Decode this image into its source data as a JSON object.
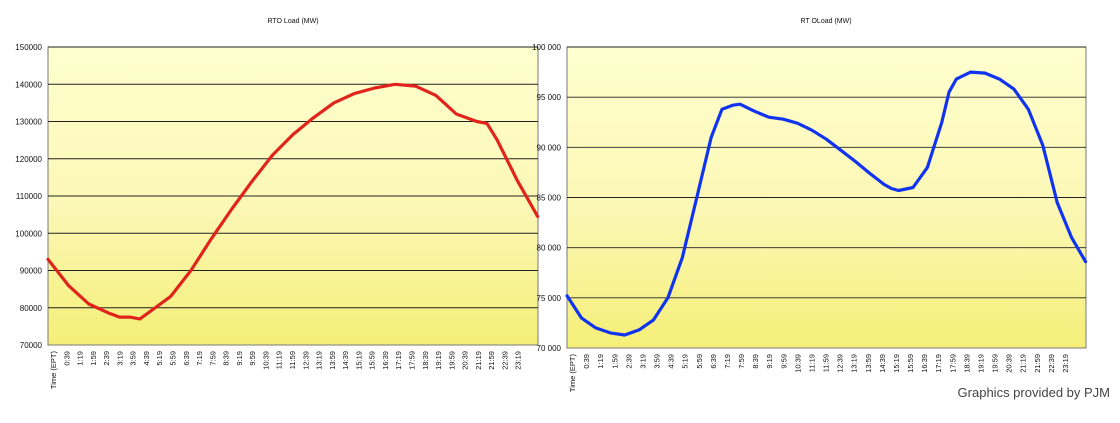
{
  "credit": "Graphics provided by PJM",
  "chart_data": [
    {
      "type": "line",
      "title": "RTO Load (MW)",
      "xlabel": "",
      "ylabel": "",
      "ylim": [
        70000,
        150000
      ],
      "yticks": [
        70000,
        80000,
        90000,
        100000,
        110000,
        120000,
        130000,
        140000,
        150000
      ],
      "grid": true,
      "legend": "none",
      "colors": {
        "line": "#e0241b",
        "background_top": "#ffffcc",
        "background_bottom": "#f6f27e",
        "grid": "#000000"
      },
      "x_tick_labels": [
        "Time (EPT)",
        "0:39",
        "1:19",
        "1:59",
        "2:39",
        "3:19",
        "3:59",
        "4:39",
        "5:19",
        "5:59",
        "6:39",
        "7:19",
        "7:59",
        "8:39",
        "9:19",
        "9:59",
        "10:39",
        "11:19",
        "11:59",
        "12:39",
        "13:19",
        "13:59",
        "14:39",
        "15:19",
        "15:59",
        "16:39",
        "17:19",
        "17:59",
        "18:39",
        "19:19",
        "19:59",
        "20:39",
        "21:19",
        "21:59",
        "22:39",
        "23:19"
      ],
      "series": [
        {
          "x": [
            "0:00",
            "1:00",
            "2:00",
            "3:00",
            "3:30",
            "4:00",
            "4:30",
            "5:00",
            "6:00",
            "7:00",
            "8:00",
            "9:00",
            "10:00",
            "11:00",
            "12:00",
            "13:00",
            "14:00",
            "15:00",
            "16:00",
            "17:00",
            "18:00",
            "19:00",
            "19:30",
            "20:00",
            "21:00",
            "21:30",
            "22:00",
            "23:00",
            "23:59"
          ],
          "values": [
            93000,
            86000,
            81000,
            78500,
            77500,
            77500,
            77000,
            79000,
            83000,
            90000,
            98500,
            106500,
            114000,
            121000,
            126500,
            131000,
            135000,
            137500,
            139000,
            140000,
            139500,
            137000,
            134500,
            132000,
            130000,
            129500,
            125000,
            114000,
            104500
          ]
        }
      ]
    },
    {
      "type": "line",
      "title": "RT OLoad (MW)",
      "xlabel": "",
      "ylabel": "",
      "ylim": [
        70000,
        100000
      ],
      "yticks": [
        70000,
        75000,
        80000,
        85000,
        90000,
        95000,
        100000
      ],
      "grid": true,
      "legend": "none",
      "colors": {
        "line": "#1033f0",
        "background_top": "#ffffcc",
        "background_bottom": "#f6f27e",
        "grid": "#000000"
      },
      "x_tick_labels": [
        "Time (EPT)",
        "0:39",
        "1:19",
        "1:59",
        "2:39",
        "3:19",
        "3:59",
        "4:39",
        "5:19",
        "5:59",
        "6:39",
        "7:19",
        "7:59",
        "8:39",
        "9:19",
        "9:59",
        "10:39",
        "11:19",
        "11:59",
        "12:39",
        "13:19",
        "13:59",
        "14:39",
        "15:19",
        "15:59",
        "16:39",
        "17:19",
        "17:59",
        "18:39",
        "19:19",
        "19:59",
        "20:39",
        "21:19",
        "21:59",
        "22:39",
        "23:19"
      ],
      "series": [
        {
          "x": [
            "0:00",
            "0:40",
            "1:20",
            "2:00",
            "2:40",
            "3:20",
            "4:00",
            "4:40",
            "5:20",
            "6:00",
            "6:40",
            "7:10",
            "7:40",
            "8:00",
            "8:40",
            "9:20",
            "10:00",
            "10:40",
            "11:20",
            "12:00",
            "12:40",
            "13:20",
            "14:00",
            "14:40",
            "15:00",
            "15:20",
            "16:00",
            "16:40",
            "17:20",
            "17:40",
            "18:00",
            "18:40",
            "19:20",
            "19:40",
            "20:00",
            "20:40",
            "21:20",
            "22:00",
            "22:40",
            "23:20",
            "23:59"
          ],
          "values": [
            75200,
            73000,
            72000,
            71500,
            71300,
            71800,
            72800,
            75000,
            79000,
            85000,
            91000,
            93800,
            94200,
            94300,
            93600,
            93000,
            92800,
            92400,
            91700,
            90800,
            89700,
            88600,
            87400,
            86300,
            85900,
            85700,
            86000,
            88000,
            92500,
            95500,
            96800,
            97500,
            97400,
            97100,
            96800,
            95800,
            93800,
            90200,
            84500,
            81000,
            78600
          ]
        }
      ]
    }
  ]
}
